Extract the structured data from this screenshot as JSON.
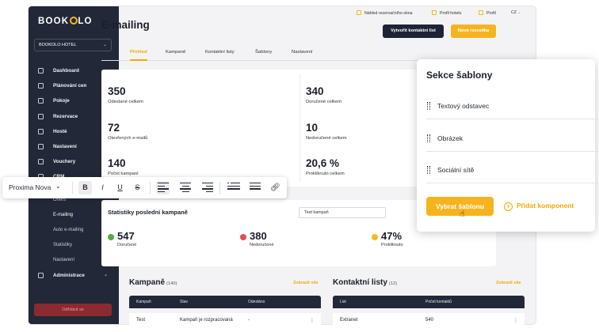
{
  "brand": {
    "logo_prefix": "BOOK",
    "logo_suffix": "LO",
    "accent": "#f2b824",
    "sidebar_bg": "#222838"
  },
  "sidebar": {
    "hotel": "BOOKOLO HOTEL",
    "items": [
      {
        "label": "Dashboard",
        "icon": "monitor-icon"
      },
      {
        "label": "Plánování cen",
        "icon": "database-icon"
      },
      {
        "label": "Pokoje",
        "icon": "home-icon"
      },
      {
        "label": "Rezervace",
        "icon": "inbox-icon"
      },
      {
        "label": "Hosté",
        "icon": "users-icon"
      },
      {
        "label": "Nastavení",
        "icon": "sliders-icon"
      },
      {
        "label": "Vouchery",
        "icon": "ticket-icon"
      },
      {
        "label": "CRM",
        "icon": "document-icon"
      }
    ],
    "subitems": [
      "Offers",
      "E-mailing",
      "Auto e-mailing",
      "Statistiky",
      "Nastavení"
    ],
    "admin": "Administrace",
    "logout": "Odhlásit se"
  },
  "topbar": {
    "preview": "Náhled rezervačního okna",
    "hotel_profile": "Profil hotelu",
    "profile": "Profil",
    "lang": "CZ"
  },
  "page": {
    "title": "E-mailing",
    "btn_contact_list": "Vytvořit kontaktní list",
    "btn_newsletter": "Nová rozesílka"
  },
  "tabs": [
    "Přehled",
    "Kampaně",
    "Kontaktní listy",
    "Šablony",
    "Nastavení"
  ],
  "stats": [
    {
      "value": "350",
      "label": "Odeslané celkem"
    },
    {
      "value": "72",
      "label": "Otevřených e-mailů"
    },
    {
      "value": "140",
      "label": "Počet kampaní"
    },
    {
      "value": "340",
      "label": "Doručené celkem"
    },
    {
      "value": "10",
      "label": "Nedoručené celkem"
    },
    {
      "value": "20,6 %",
      "label": "Prokliknuto celkem"
    }
  ],
  "last_campaign": {
    "title": "Statistiky poslední kampaně",
    "select": "Test kampaň",
    "kpis": [
      {
        "value": "547",
        "label": "Doručené",
        "color": "#4caf3c"
      },
      {
        "value": "380",
        "label": "Nedoručené",
        "color": "#e84d4d"
      },
      {
        "value": "47%",
        "label": "Prokliknuto",
        "color": "#f2b824"
      }
    ]
  },
  "campaigns": {
    "title": "Kampaně",
    "count": "(140)",
    "show_all": "Zobrazit vše",
    "columns": [
      "Kampaň",
      "Stav",
      "Odesláno"
    ],
    "rows": [
      {
        "name": "Test",
        "status": "Kampaň je rozpracovaná",
        "sent": "-"
      }
    ]
  },
  "contacts": {
    "title": "Kontaktní listy",
    "count": "(12)",
    "show_all": "Zobrazit vše",
    "columns": [
      "List",
      "Počet kontaktů"
    ],
    "rows": [
      {
        "name": "Extranet",
        "count": "540"
      }
    ]
  },
  "toolbar": {
    "font": "Proxima Nova",
    "bold": "B",
    "italic": "I",
    "underline": "U",
    "strike": "S"
  },
  "panel": {
    "title": "Sekce šablony",
    "items": [
      "Textový odstavec",
      "Obrázek",
      "Sociální sítě"
    ],
    "choose": "Vybrat šablonu",
    "add": "Přidat komponent"
  }
}
